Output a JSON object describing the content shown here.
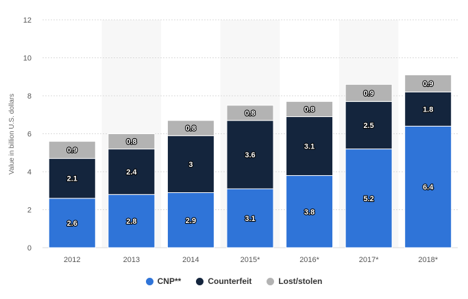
{
  "chart_data": {
    "type": "bar",
    "stacked": true,
    "ylabel": "Value in billion U.S. dollars",
    "ylim": [
      0,
      12
    ],
    "yticks": [
      "0",
      "2",
      "4",
      "6",
      "8",
      "10",
      "12"
    ],
    "categories": [
      "2012",
      "2013",
      "2014",
      "2015*",
      "2016*",
      "2017*",
      "2018*"
    ],
    "series": [
      {
        "name": "CNP**",
        "color": "#2f74d8",
        "values": [
          2.6,
          2.8,
          2.9,
          3.1,
          3.8,
          5.2,
          6.4
        ],
        "labels": [
          "2.6",
          "2.8",
          "2.9",
          "3.1",
          "3.8",
          "5.2",
          "6.4"
        ]
      },
      {
        "name": "Counterfeit",
        "color": "#14253d",
        "values": [
          2.1,
          2.4,
          3,
          3.6,
          3.1,
          2.5,
          1.8
        ],
        "labels": [
          "2.1",
          "2.4",
          "3",
          "3.6",
          "3.1",
          "2.5",
          "1.8"
        ]
      },
      {
        "name": "Lost/stolen",
        "color": "#b3b3b3",
        "values": [
          0.9,
          0.8,
          0.8,
          0.8,
          0.8,
          0.9,
          0.9
        ],
        "labels": [
          "0.9",
          "0.8",
          "0.8",
          "0.8",
          "0.8",
          "0.9",
          "0.9"
        ]
      }
    ],
    "grid": true,
    "legend_position": "bottom"
  }
}
